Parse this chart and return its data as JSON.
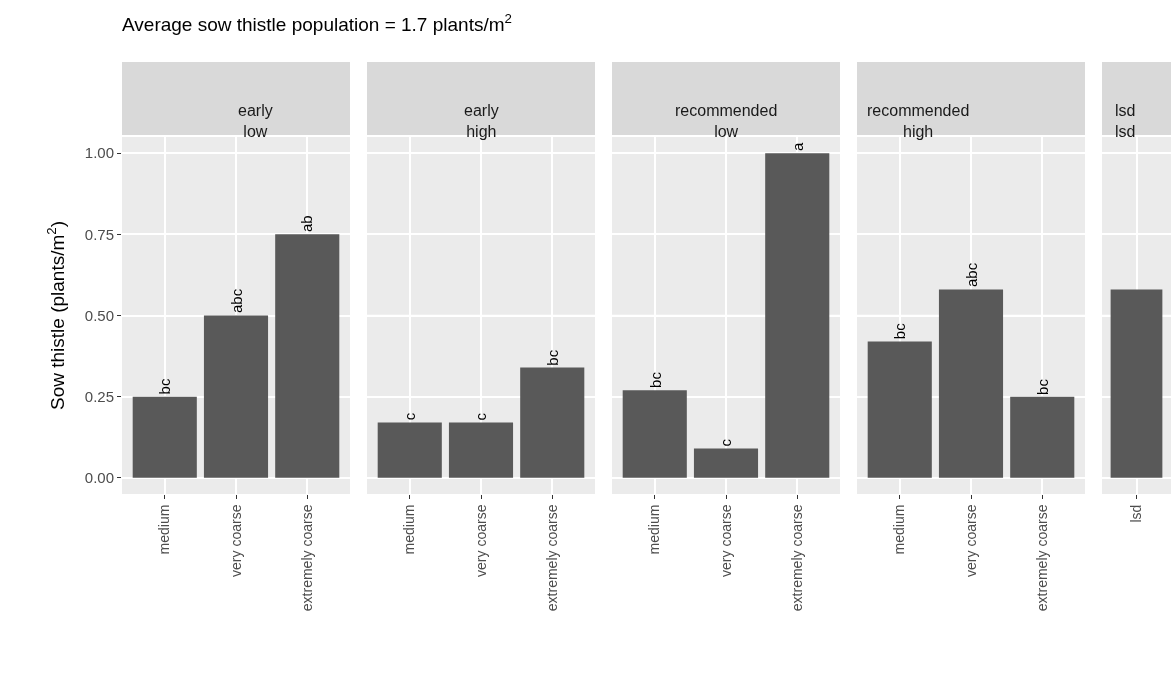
{
  "chart_data": [
    {
      "type": "bar",
      "title": "Average sow thistle population = 1.7 plants/m$^{2}$",
      "subtitle": "early\nlow",
      "ylabel": "Sow thistle (plants/m$^{2}$)",
      "categories": [
        "medium",
        "very coarse",
        "extremely coarse"
      ],
      "values": [
        0.25,
        0.5,
        0.75
      ],
      "value_labels": [
        "bc",
        "abc",
        "ab"
      ],
      "color": "#595959",
      "ylim": [
        -0.05,
        1.05
      ],
      "yticks": [
        {
          "value": 0,
          "label": "0.00"
        },
        {
          "value": 0.25,
          "label": "0.25"
        },
        {
          "value": 0.5,
          "label": "0.50"
        },
        {
          "value": 0.75,
          "label": "0.75"
        },
        {
          "value": 1,
          "label": "1.00"
        }
      ],
      "grid": true
    },
    {
      "type": "bar",
      "subtitle": "early\nhigh",
      "categories": [
        "medium",
        "very coarse",
        "extremely coarse"
      ],
      "values": [
        0.17,
        0.17,
        0.34
      ],
      "value_labels": [
        "c",
        "c",
        "bc"
      ],
      "color": "#595959",
      "ylim": [
        -0.05,
        1.05
      ],
      "yticks": [
        0,
        0.25,
        0.5,
        0.75,
        1
      ],
      "grid": true,
      "tick_labels": "x"
    },
    {
      "type": "bar",
      "subtitle": "recommended\nlow",
      "categories": [
        "medium",
        "very coarse",
        "extremely coarse"
      ],
      "values": [
        0.27,
        0.09,
        1.0
      ],
      "value_labels": [
        "bc",
        "c",
        "a"
      ],
      "color": "#595959",
      "ylim": [
        -0.05,
        1.05
      ],
      "yticks": [
        0,
        0.25,
        0.5,
        0.75,
        1
      ],
      "grid": true,
      "tick_labels": "x"
    },
    {
      "type": "bar",
      "subtitle": "recommended\nhigh",
      "categories": [
        "medium",
        "very coarse",
        "extremely coarse"
      ],
      "values": [
        0.42,
        0.58,
        0.25
      ],
      "value_labels": [
        "bc",
        "abc",
        "bc"
      ],
      "color": "#595959",
      "ylim": [
        -0.05,
        1.05
      ],
      "yticks": [
        0,
        0.25,
        0.5,
        0.75,
        1
      ],
      "grid": true,
      "tick_labels": "x"
    },
    {
      "type": "bar",
      "subtitle": "lsd\nlsd",
      "categories": [
        "lsd"
      ],
      "values": [
        0.58
      ],
      "color": "#595959",
      "ylim": [
        -0.05,
        1.05
      ],
      "yticks": [
        0,
        0.25,
        0.5,
        0.75,
        1
      ],
      "grid": true,
      "tick_labels": "x"
    }
  ]
}
